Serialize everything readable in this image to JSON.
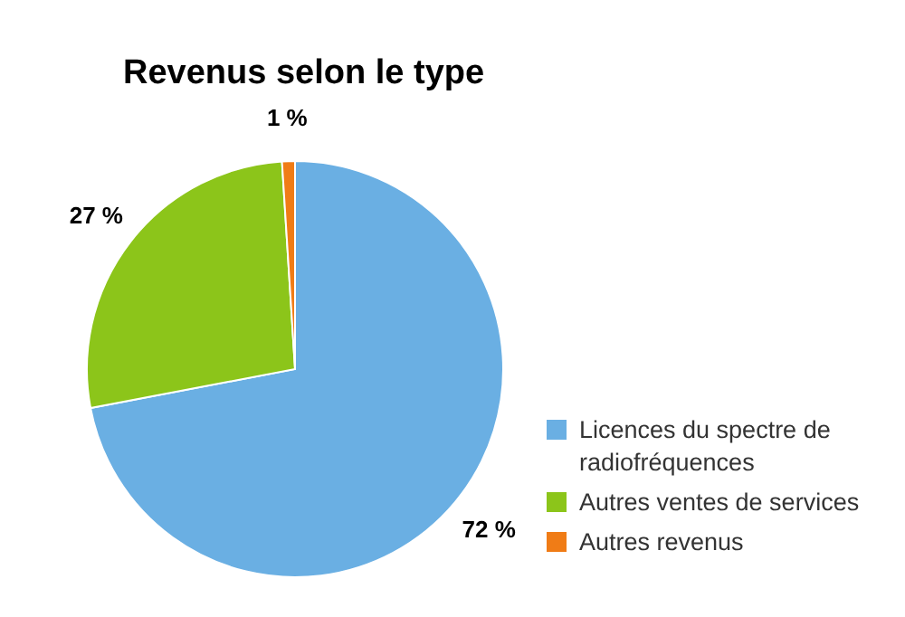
{
  "chart_data": {
    "type": "pie",
    "title": "Revenus selon le type",
    "categories": [
      "Licences du spectre de radiofréquences",
      "Autres ventes de services",
      "Autres revenus"
    ],
    "values": [
      72,
      27,
      1
    ],
    "colors": [
      "#6aafe3",
      "#8cc51a",
      "#f07c16"
    ],
    "value_labels": [
      "72 %",
      "27 %",
      "1 %"
    ],
    "legend": "bottom right"
  }
}
